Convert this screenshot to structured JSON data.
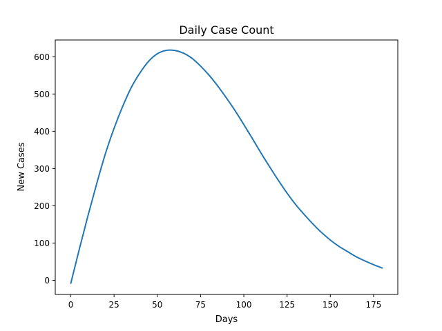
{
  "chart_data": {
    "type": "line",
    "title": "Daily Case Count",
    "xlabel": "Days",
    "ylabel": "New Cases",
    "xlim": [
      -9,
      189
    ],
    "ylim": [
      -38,
      645
    ],
    "xticks": [
      0,
      25,
      50,
      75,
      100,
      125,
      150,
      175
    ],
    "yticks": [
      0,
      100,
      200,
      300,
      400,
      500,
      600
    ],
    "grid": false,
    "legend": "none",
    "series": [
      {
        "color": "#1f77b4",
        "x": [
          0,
          5,
          10,
          15,
          20,
          25,
          30,
          35,
          40,
          45,
          50,
          55,
          60,
          65,
          70,
          75,
          80,
          85,
          90,
          95,
          100,
          105,
          110,
          115,
          120,
          125,
          130,
          135,
          140,
          145,
          150,
          155,
          160,
          165,
          170,
          175,
          180
        ],
        "y": [
          -8,
          85,
          175,
          260,
          340,
          408,
          467,
          518,
          557,
          588,
          608,
          617,
          617,
          610,
          596,
          575,
          550,
          521,
          489,
          455,
          418,
          380,
          341,
          304,
          268,
          234,
          203,
          176,
          151,
          128,
          108,
          91,
          77,
          63,
          52,
          42,
          33
        ]
      }
    ]
  }
}
